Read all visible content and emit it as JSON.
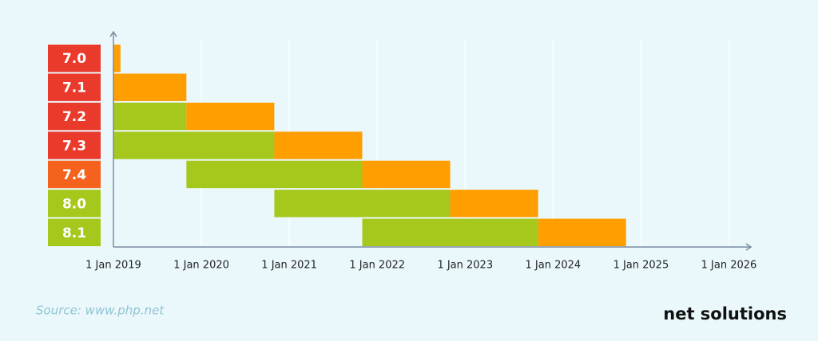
{
  "chart_data": {
    "type": "gantt",
    "categories": [
      "7.0",
      "7.1",
      "7.2",
      "7.3",
      "7.4",
      "8.0",
      "8.1"
    ],
    "category_colors": [
      "#ea3a2b",
      "#ea3a2b",
      "#ea3a2b",
      "#ea3a2b",
      "#f5621e",
      "#a6c81c",
      "#a6c81c"
    ],
    "series": [
      {
        "color": "#a6c81c",
        "starts": [
          null,
          null,
          2019,
          2019,
          2019.83,
          2020.83,
          2021.83
        ],
        "ends": [
          null,
          null,
          2019.83,
          2020.83,
          2021.83,
          2022.83,
          2023.83
        ]
      },
      {
        "color": "#ff9e00",
        "starts": [
          2019,
          2019,
          2019.83,
          2020.83,
          2021.83,
          2022.83,
          2023.83
        ],
        "ends": [
          2019.08,
          2019.83,
          2020.83,
          2021.83,
          2022.83,
          2023.83,
          2024.83
        ]
      }
    ],
    "xlim": [
      2019,
      2026.25
    ],
    "xticks": [
      {
        "value": 2019,
        "label": "1 Jan 2019"
      },
      {
        "value": 2020,
        "label": "1 Jan 2020"
      },
      {
        "value": 2021,
        "label": "1 Jan 2021"
      },
      {
        "value": 2022,
        "label": "1 Jan 2022"
      },
      {
        "value": 2023,
        "label": "1 Jan 2023"
      },
      {
        "value": 2024,
        "label": "1 Jan 2024"
      },
      {
        "value": 2025,
        "label": "1 Jan 2025"
      },
      {
        "value": 2026,
        "label": "1 Jan 2026"
      }
    ],
    "grid": true
  },
  "footer": {
    "source": "Source: www.php.net",
    "brand": "net solutions"
  }
}
